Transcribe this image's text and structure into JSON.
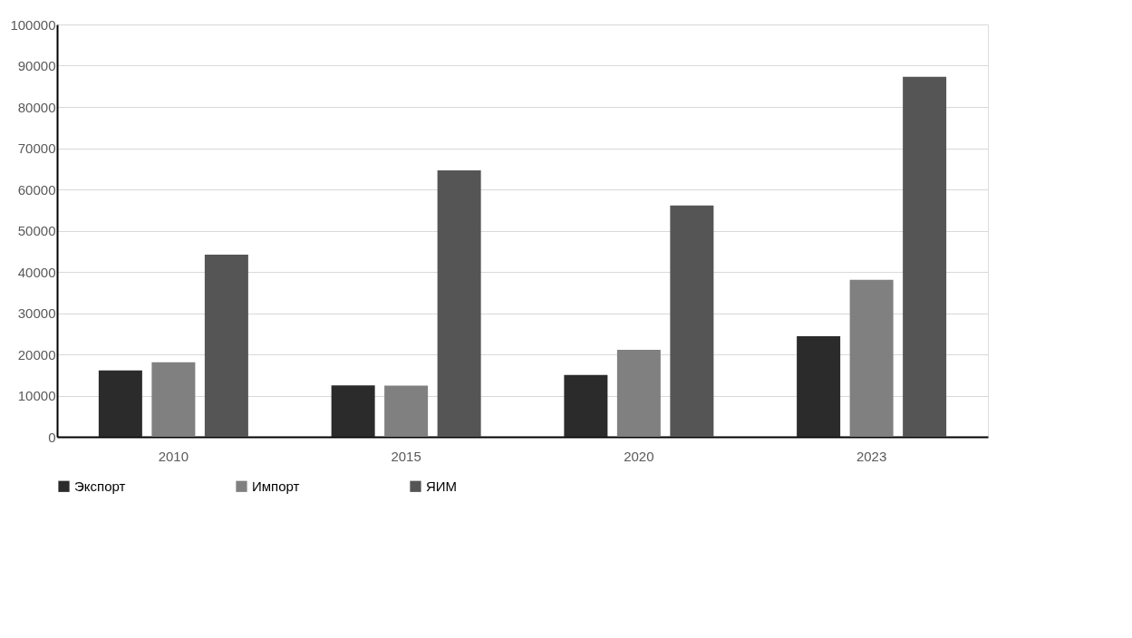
{
  "chart_data": {
    "type": "bar",
    "categories": [
      "2010",
      "2015",
      "2020",
      "2023"
    ],
    "series": [
      {
        "name": "Экспорт",
        "color": "#2b2b2b",
        "values": [
          16100,
          12500,
          15000,
          24400
        ]
      },
      {
        "name": "Импорт",
        "color": "#808080",
        "values": [
          18100,
          12400,
          21100,
          38100
        ]
      },
      {
        "name": "ЯИМ",
        "color": "#555555",
        "values": [
          44200,
          64600,
          56100,
          87300
        ]
      }
    ],
    "ylim": [
      0,
      100000
    ],
    "yticks": [
      0,
      10000,
      20000,
      30000,
      40000,
      50000,
      60000,
      70000,
      80000,
      90000,
      100000
    ],
    "grid": "y",
    "legend": "bottom"
  }
}
